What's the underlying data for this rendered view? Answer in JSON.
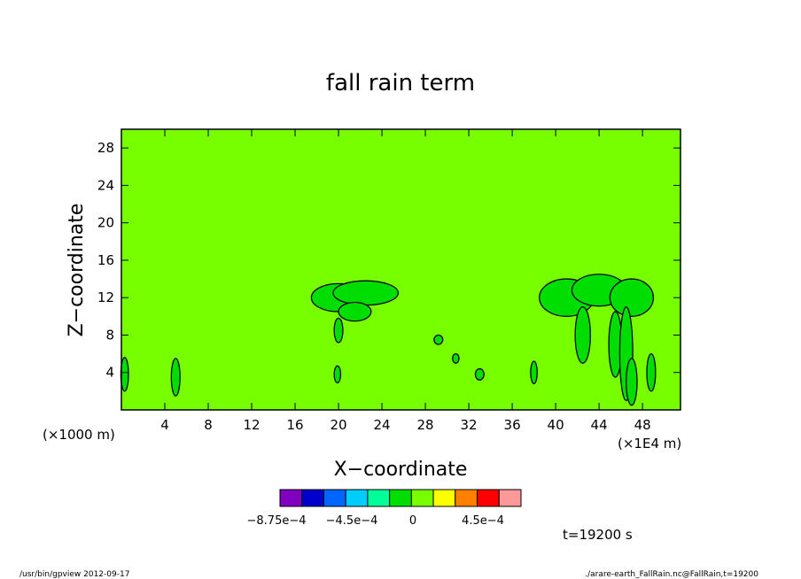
{
  "chart_data": {
    "type": "heatmap",
    "title": "fall rain term",
    "xlabel": "X−coordinate",
    "ylabel": "Z−coordinate",
    "x_unit_left": "(×1000 m)",
    "x_unit_right": "(×1E4 m)",
    "xlim": [
      0,
      51.5
    ],
    "ylim": [
      0,
      30
    ],
    "x_ticks": [
      4,
      8,
      12,
      16,
      20,
      24,
      28,
      32,
      36,
      40,
      44,
      48
    ],
    "x_tick_labels": [
      "4",
      "8",
      "12",
      "16",
      "20",
      "24",
      "28",
      "32",
      "36",
      "40",
      "44",
      "48"
    ],
    "y_ticks": [
      4,
      8,
      12,
      16,
      20,
      24,
      28
    ],
    "y_tick_labels": [
      "4",
      "8",
      "12",
      "16",
      "20",
      "24",
      "28"
    ],
    "background_color": "#77ff00",
    "colorbar": {
      "colors": [
        "#7f00bf",
        "#0000cc",
        "#0066ff",
        "#00ccff",
        "#00ff99",
        "#00dd00",
        "#77ff00",
        "#ffff00",
        "#ff8000",
        "#ff0000",
        "#ff9999"
      ],
      "labels": [
        "−8.75e−4",
        "−4.5e−4",
        "0",
        "4.5e−4"
      ]
    },
    "time_label": "t=19200 s",
    "cells": [
      {
        "x": 20.0,
        "z": 12.0,
        "rx": 2.5,
        "rz": 1.5
      },
      {
        "x": 22.5,
        "z": 12.5,
        "rx": 3.0,
        "rz": 1.3
      },
      {
        "x": 21.5,
        "z": 10.5,
        "rx": 1.5,
        "rz": 1.0
      },
      {
        "x": 20.0,
        "z": 8.5,
        "rx": 0.4,
        "rz": 1.3
      },
      {
        "x": 19.9,
        "z": 3.8,
        "rx": 0.3,
        "rz": 0.9
      },
      {
        "x": 0.3,
        "z": 3.8,
        "rx": 0.35,
        "rz": 1.8
      },
      {
        "x": 5.0,
        "z": 3.5,
        "rx": 0.4,
        "rz": 2.0
      },
      {
        "x": 41.0,
        "z": 12.0,
        "rx": 2.5,
        "rz": 2.0
      },
      {
        "x": 44.0,
        "z": 12.8,
        "rx": 2.5,
        "rz": 1.7
      },
      {
        "x": 47.0,
        "z": 12.0,
        "rx": 2.0,
        "rz": 2.0
      },
      {
        "x": 42.5,
        "z": 8.0,
        "rx": 0.7,
        "rz": 3.0
      },
      {
        "x": 45.5,
        "z": 7.0,
        "rx": 0.6,
        "rz": 3.5
      },
      {
        "x": 46.5,
        "z": 6.0,
        "rx": 0.6,
        "rz": 5.0
      },
      {
        "x": 47.0,
        "z": 3.0,
        "rx": 0.5,
        "rz": 2.5
      },
      {
        "x": 38.0,
        "z": 4.0,
        "rx": 0.3,
        "rz": 1.2
      },
      {
        "x": 48.8,
        "z": 4.0,
        "rx": 0.4,
        "rz": 2.0
      },
      {
        "x": 33.0,
        "z": 3.8,
        "rx": 0.4,
        "rz": 0.6
      },
      {
        "x": 30.8,
        "z": 5.5,
        "rx": 0.3,
        "rz": 0.5
      },
      {
        "x": 29.2,
        "z": 7.5,
        "rx": 0.4,
        "rz": 0.5
      }
    ]
  },
  "footer": {
    "left": "/usr/bin/gpview  2012-09-17",
    "right": "./arare-earth_FallRain.nc@FallRain,t=19200"
  }
}
